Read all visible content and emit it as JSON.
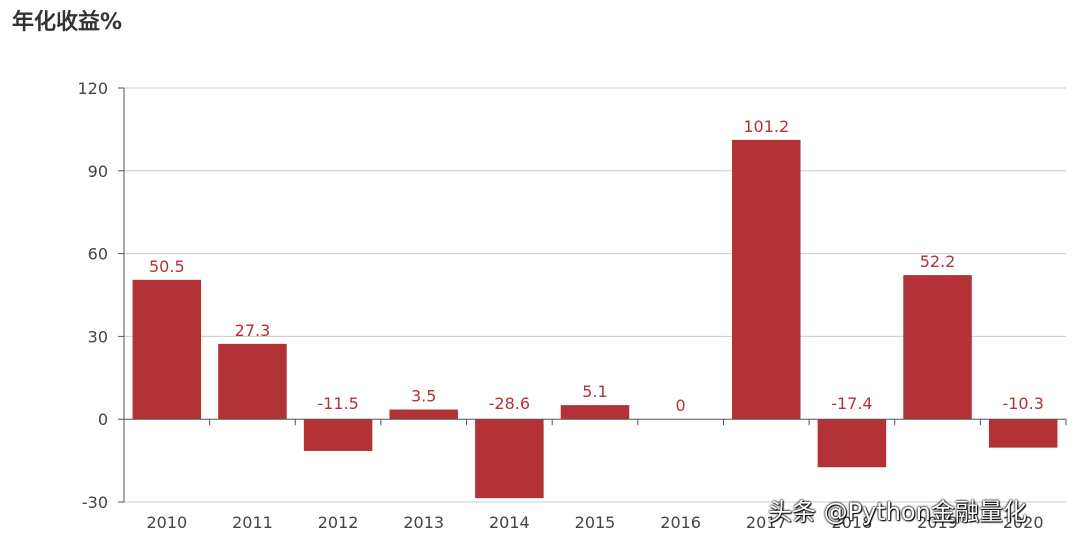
{
  "chart_data": {
    "type": "bar",
    "title": "年化收益%",
    "categories": [
      "2010",
      "2011",
      "2012",
      "2013",
      "2014",
      "2015",
      "2016",
      "2017",
      "2018",
      "2019",
      "2020"
    ],
    "values": [
      50.5,
      27.3,
      -11.5,
      3.5,
      -28.6,
      5.1,
      0,
      101.2,
      -17.4,
      52.2,
      -10.3
    ],
    "value_labels": [
      "50.5",
      "27.3",
      "-11.5",
      "3.5",
      "-28.6",
      "5.1",
      "0",
      "101.2",
      "-17.4",
      "52.2",
      "-10.3"
    ],
    "ylim": [
      -30,
      120
    ],
    "yticks": [
      -30,
      0,
      30,
      60,
      90,
      120
    ],
    "grid": true,
    "xlabel": "",
    "ylabel": "",
    "bar_color": "#b33235",
    "label_color": "#b33235"
  },
  "watermark": "头条 @Python金融量化"
}
